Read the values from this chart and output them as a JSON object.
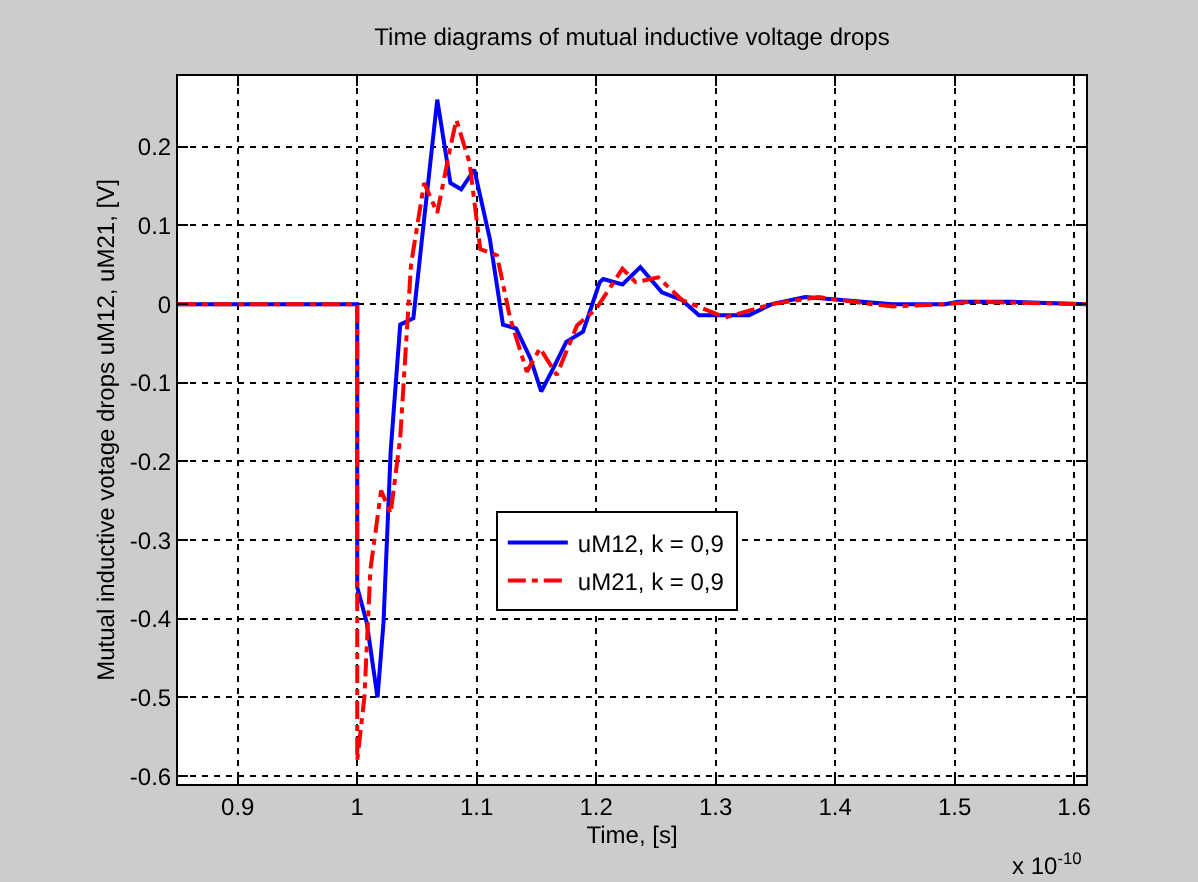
{
  "chart_data": {
    "type": "line",
    "title": "Time diagrams of mutual inductive voltage drops",
    "xlabel": "Time, [s]",
    "ylabel": "Mutual inductive votage drops uM12, uM21, [V]",
    "annotations": [
      "x 10$^{-10}$"
    ],
    "xlim": [
      0.85,
      1.61
    ],
    "xticks": [
      0.9,
      1,
      1.1,
      1.2,
      1.3,
      1.4,
      1.5,
      1.6
    ],
    "ylim": [
      -0.61,
      0.29
    ],
    "yticks": [
      -0.6,
      -0.5,
      -0.4,
      -0.3,
      -0.2,
      -0.1,
      0,
      0.1,
      0.2
    ],
    "grid": true,
    "legend": "center",
    "marker": "none",
    "series": [
      {
        "name": "uM12, k = 0,9",
        "color": "#0000ff",
        "line_style": "solid",
        "x": [
          0.85,
          1.0,
          1.0,
          1.008,
          1.017,
          1.022,
          1.028,
          1.036,
          1.047,
          1.056,
          1.067,
          1.078,
          1.087,
          1.098,
          1.111,
          1.122,
          1.133,
          1.145,
          1.154,
          1.164,
          1.175,
          1.189,
          1.203,
          1.206,
          1.222,
          1.237,
          1.255,
          1.272,
          1.286,
          1.328,
          1.347,
          1.375,
          1.408,
          1.448,
          1.492,
          1.503,
          1.547,
          1.61
        ],
        "values": [
          0,
          0,
          -0.36,
          -0.405,
          -0.5,
          -0.405,
          -0.187,
          -0.026,
          -0.018,
          0.108,
          0.26,
          0.154,
          0.146,
          0.171,
          0.083,
          -0.026,
          -0.031,
          -0.069,
          -0.111,
          -0.082,
          -0.048,
          -0.035,
          0.028,
          0.032,
          0.025,
          0.047,
          0.015,
          0.005,
          -0.014,
          -0.014,
          0,
          0.009,
          0.005,
          0,
          0,
          0.003,
          0.003,
          0
        ]
      },
      {
        "name": "uM21, k = 0,9",
        "color": "#ff0000",
        "line_style": "dashdot",
        "x": [
          0.85,
          1.0,
          1.0,
          1.006,
          1.011,
          1.02,
          1.028,
          1.036,
          1.045,
          1.056,
          1.067,
          1.078,
          1.083,
          1.094,
          1.103,
          1.117,
          1.128,
          1.142,
          1.153,
          1.167,
          1.184,
          1.2,
          1.222,
          1.233,
          1.252,
          1.272,
          1.308,
          1.347,
          1.386,
          1.42,
          1.448,
          1.492,
          1.514,
          1.61
        ],
        "values": [
          0,
          0,
          -0.58,
          -0.5,
          -0.338,
          -0.237,
          -0.266,
          -0.17,
          0.05,
          0.154,
          0.116,
          0.2,
          0.234,
          0.18,
          0.07,
          0.062,
          -0.018,
          -0.086,
          -0.056,
          -0.09,
          -0.027,
          -0.006,
          0.045,
          0.028,
          0.034,
          0.005,
          -0.017,
          0,
          0.009,
          0.002,
          -0.003,
          0,
          0.003,
          0
        ]
      }
    ]
  }
}
